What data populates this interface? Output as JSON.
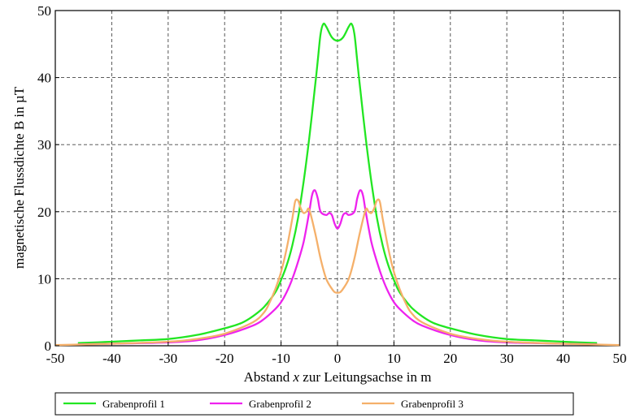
{
  "chart_data": {
    "type": "line",
    "title": "",
    "xlabel_prefix": "Abstand ",
    "xlabel_var": "x",
    "xlabel_suffix": " zur Leitungsachse in m",
    "ylabel": "magnetische Flussdichte B in µT",
    "xlim": [
      -50,
      50
    ],
    "ylim": [
      0,
      50
    ],
    "xticks": [
      -50,
      -40,
      -30,
      -20,
      -10,
      0,
      10,
      20,
      30,
      40,
      50
    ],
    "yticks": [
      0,
      10,
      20,
      30,
      40,
      50
    ],
    "grid": true,
    "legend_position": "bottom",
    "series": [
      {
        "name": "Grabenprofil 1",
        "color": "#22e622",
        "x": [
          -46,
          -40,
          -35,
          -30,
          -25,
          -20,
          -17,
          -15,
          -13,
          -11,
          -10,
          -9,
          -8,
          -7,
          -6,
          -5,
          -4,
          -3.5,
          -3,
          -2.5,
          -2,
          -1,
          0,
          1,
          2,
          2.5,
          3,
          3.5,
          4,
          5,
          6,
          7,
          8,
          9,
          10,
          11,
          13,
          15,
          17,
          20,
          25,
          30,
          35,
          40,
          46
        ],
        "y": [
          0.4,
          0.6,
          0.8,
          1.0,
          1.6,
          2.6,
          3.4,
          4.4,
          5.8,
          8.0,
          9.8,
          12.0,
          15.0,
          19.0,
          24.5,
          31.0,
          38.5,
          42.5,
          46.5,
          48.0,
          47.6,
          46.0,
          45.5,
          46.0,
          47.6,
          48.0,
          46.5,
          42.5,
          38.5,
          31.0,
          24.5,
          19.0,
          15.0,
          12.0,
          9.8,
          8.0,
          5.8,
          4.4,
          3.4,
          2.6,
          1.6,
          1.0,
          0.8,
          0.6,
          0.4
        ]
      },
      {
        "name": "Grabenprofil 2",
        "color": "#ee22ee",
        "x": [
          -46,
          -40,
          -30,
          -25,
          -20,
          -15,
          -13,
          -11,
          -10,
          -9,
          -8,
          -7,
          -6,
          -5,
          -4.5,
          -4,
          -3.5,
          -3,
          -2,
          -1.5,
          -1,
          -0.5,
          0,
          0.5,
          1,
          1.5,
          2,
          3,
          3.5,
          4,
          4.5,
          5,
          6,
          7,
          8,
          9,
          10,
          11,
          13,
          15,
          20,
          25,
          30,
          40,
          46
        ],
        "y": [
          0.2,
          0.3,
          0.5,
          0.8,
          1.6,
          3.0,
          4.0,
          5.5,
          6.5,
          8.0,
          10.0,
          12.5,
          15.5,
          20.0,
          22.5,
          23.2,
          22.0,
          20.0,
          19.5,
          19.8,
          19.5,
          18.2,
          17.5,
          18.2,
          19.5,
          19.8,
          19.5,
          20.0,
          22.0,
          23.2,
          22.5,
          20.0,
          15.5,
          12.5,
          10.0,
          8.0,
          6.5,
          5.5,
          4.0,
          3.0,
          1.6,
          0.8,
          0.5,
          0.3,
          0.2
        ]
      },
      {
        "name": "Grabenprofil 3",
        "color": "#f5b06a",
        "x": [
          -50,
          -40,
          -30,
          -25,
          -20,
          -15,
          -13,
          -12,
          -11,
          -10,
          -9,
          -8,
          -7.5,
          -7,
          -6.5,
          -6,
          -5.5,
          -5,
          -4,
          -3,
          -2,
          -1,
          -0.5,
          0,
          0.5,
          1,
          2,
          3,
          4,
          5,
          5.5,
          6,
          6.5,
          7,
          7.5,
          8,
          9,
          10,
          11,
          12,
          13,
          15,
          20,
          25,
          30,
          40,
          50
        ],
        "y": [
          0.1,
          0.3,
          0.6,
          1.0,
          1.8,
          3.5,
          5.0,
          6.5,
          8.5,
          11.0,
          14.5,
          19.0,
          21.5,
          21.7,
          20.5,
          19.8,
          20.0,
          20.3,
          17.0,
          13.0,
          10.0,
          8.5,
          8.0,
          7.9,
          8.0,
          8.5,
          10.0,
          13.0,
          17.0,
          20.3,
          20.0,
          19.8,
          20.5,
          21.7,
          21.5,
          19.0,
          14.5,
          11.0,
          8.5,
          6.5,
          5.0,
          3.5,
          1.8,
          1.0,
          0.6,
          0.3,
          0.1
        ]
      }
    ]
  }
}
